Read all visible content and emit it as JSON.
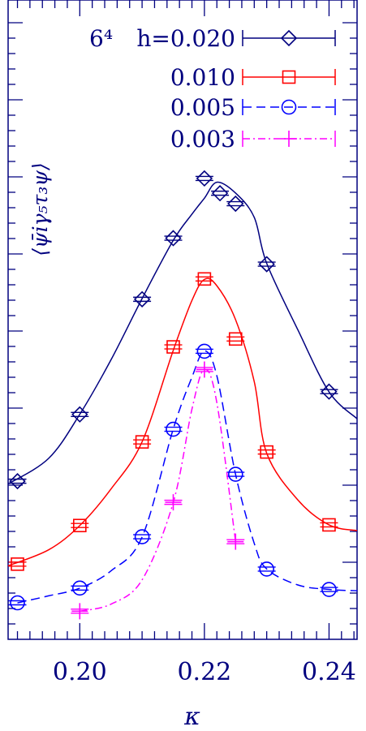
{
  "chart_data": {
    "type": "line",
    "xlabel": "κ",
    "ylabel": "⟨ψ̄iγ₅τ₃ψ⟩",
    "x_ticks": [
      "0.20",
      "0.22",
      "0.24"
    ],
    "x_tick_values": [
      0.2,
      0.22,
      0.24
    ],
    "xlim": [
      0.1885,
      0.2445
    ],
    "ylim": [
      0,
      1
    ],
    "grid": false,
    "legend_position": "top-right",
    "legend_prefix": "6⁴",
    "series": [
      {
        "name": "h=0.020",
        "color": "#00007f",
        "marker": "diamond",
        "line": "solid",
        "points": [
          [
            0.19,
            0.2473
          ],
          [
            0.2,
            0.3518
          ],
          [
            0.21,
            0.5319
          ],
          [
            0.215,
            0.6275
          ],
          [
            0.22,
            0.7209
          ],
          [
            0.2225,
            0.6978
          ],
          [
            0.225,
            0.6814
          ],
          [
            0.23,
            0.5868
          ],
          [
            0.24,
            0.3875
          ]
        ],
        "curve": [
          [
            0.1885,
            0.243
          ],
          [
            0.195,
            0.283
          ],
          [
            0.2,
            0.352
          ],
          [
            0.205,
            0.437
          ],
          [
            0.21,
            0.533
          ],
          [
            0.215,
            0.624
          ],
          [
            0.218,
            0.665
          ],
          [
            0.22,
            0.69
          ],
          [
            0.222,
            0.715
          ],
          [
            0.225,
            0.698
          ],
          [
            0.228,
            0.66
          ],
          [
            0.23,
            0.588
          ],
          [
            0.235,
            0.484
          ],
          [
            0.24,
            0.387
          ],
          [
            0.2445,
            0.345
          ]
        ]
      },
      {
        "name": "0.010",
        "color": "#ff0000",
        "marker": "square",
        "line": "solid",
        "points": [
          [
            0.19,
            0.1176
          ],
          [
            0.2,
            0.178
          ],
          [
            0.21,
            0.3088
          ],
          [
            0.215,
            0.4574
          ],
          [
            0.22,
            0.5637
          ],
          [
            0.225,
            0.4698
          ],
          [
            0.23,
            0.293
          ],
          [
            0.24,
            0.179
          ]
        ],
        "curve": [
          [
            0.1885,
            0.115
          ],
          [
            0.195,
            0.14
          ],
          [
            0.2,
            0.178
          ],
          [
            0.205,
            0.235
          ],
          [
            0.21,
            0.309
          ],
          [
            0.215,
            0.452
          ],
          [
            0.218,
            0.53
          ],
          [
            0.22,
            0.563
          ],
          [
            0.222,
            0.553
          ],
          [
            0.225,
            0.5
          ],
          [
            0.228,
            0.403
          ],
          [
            0.23,
            0.291
          ],
          [
            0.235,
            0.218
          ],
          [
            0.24,
            0.179
          ],
          [
            0.2445,
            0.17
          ]
        ]
      },
      {
        "name": "0.005",
        "color": "#0000ff",
        "marker": "circle",
        "line": "dashed",
        "points": [
          [
            0.19,
            0.0571
          ],
          [
            0.2,
            0.0802
          ],
          [
            0.21,
            0.1604
          ],
          [
            0.215,
            0.3286
          ],
          [
            0.22,
            0.4506
          ],
          [
            0.225,
            0.2582
          ],
          [
            0.23,
            0.1099
          ],
          [
            0.24,
            0.078
          ]
        ],
        "curve": [
          [
            0.19,
            0.057
          ],
          [
            0.195,
            0.068
          ],
          [
            0.2,
            0.08
          ],
          [
            0.205,
            0.107
          ],
          [
            0.21,
            0.16
          ],
          [
            0.215,
            0.329
          ],
          [
            0.218,
            0.41
          ],
          [
            0.22,
            0.451
          ],
          [
            0.222,
            0.412
          ],
          [
            0.225,
            0.258
          ],
          [
            0.228,
            0.15
          ],
          [
            0.23,
            0.11
          ],
          [
            0.235,
            0.085
          ],
          [
            0.24,
            0.078
          ],
          [
            0.2445,
            0.076
          ]
        ]
      },
      {
        "name": "0.003",
        "color": "#ff00ff",
        "marker": "plus",
        "line": "dashdot",
        "points": [
          [
            0.2,
            0.044
          ],
          [
            0.215,
            0.2143
          ],
          [
            0.22,
            0.422
          ],
          [
            0.225,
            0.1527
          ]
        ],
        "curve": [
          [
            0.2,
            0.044
          ],
          [
            0.205,
            0.055
          ],
          [
            0.21,
            0.093
          ],
          [
            0.215,
            0.214
          ],
          [
            0.218,
            0.36
          ],
          [
            0.22,
            0.422
          ],
          [
            0.222,
            0.37
          ],
          [
            0.225,
            0.153
          ]
        ]
      }
    ]
  }
}
